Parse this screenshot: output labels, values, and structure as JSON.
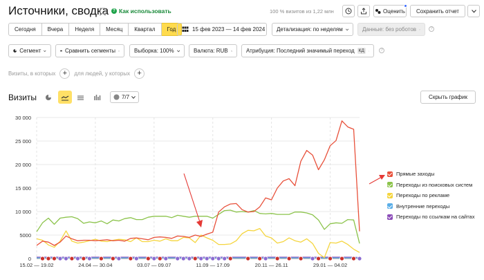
{
  "header": {
    "title": "Источники, сводка",
    "howto_label": "Как использовать",
    "visits_info": "100 % визитов из 1,22 млн",
    "rate_label": "Оценить",
    "save_label": "Сохранить отчет"
  },
  "periods": [
    {
      "label": "Сегодня"
    },
    {
      "label": "Вчера"
    },
    {
      "label": "Неделя"
    },
    {
      "label": "Месяц"
    },
    {
      "label": "Квартал"
    },
    {
      "label": "Год"
    }
  ],
  "active_period": "Год",
  "date_range": "15 фев 2023 — 14 фев 2024",
  "detail_dropdown": "Детализация: по неделям",
  "robots_dropdown": "Данные: без роботов",
  "segment_dropdown": "Сегмент",
  "compare_dropdown": "Сравнить сегменты",
  "sample_dropdown": "Выборка: 100%",
  "currency_dropdown": "Валюта: RUB",
  "attribution_dropdown": "Атрибуция: Последний значимый переход",
  "attribution_badge": "КД",
  "filters": {
    "visits_label": "Визиты, в которых",
    "people_label": "для людей, у которых"
  },
  "chart_section": {
    "title": "Визиты",
    "metrics_count": "7/7",
    "hide_label": "Скрыть график"
  },
  "colors": {
    "accent": "#ffdb4d",
    "direct": "#e8503a",
    "search": "#8bc34a",
    "ads": "#f5d53d",
    "internal": "#5aaee8",
    "links": "#8b4bb8"
  },
  "chart_data": {
    "type": "line",
    "ylim": [
      0,
      30000
    ],
    "yticks": [
      "0",
      "5000",
      "10 000",
      "15 000",
      "20 000",
      "25 000",
      "30 000"
    ],
    "ytick_values": [
      0,
      5000,
      10000,
      15000,
      20000,
      25000,
      30000
    ],
    "xtick_labels": [
      "15.02 — 19.02",
      "24.04 — 30.04",
      "03.07 — 09.07",
      "11.09 — 17.09",
      "20.11 — 26.11",
      "29.01 — 04.02"
    ],
    "xtick_index": [
      0,
      10,
      20,
      30,
      40,
      50
    ],
    "series": [
      {
        "name": "Прямые заходы",
        "color": "#e8503a",
        "values": [
          2800,
          3700,
          3500,
          2800,
          3500,
          4800,
          4200,
          3800,
          3900,
          3900,
          3800,
          3900,
          4000,
          3800,
          3900,
          3700,
          4300,
          4400,
          4200,
          4000,
          4500,
          4600,
          4500,
          4300,
          4800,
          4700,
          4500,
          5000,
          4700,
          5200,
          5600,
          9900,
          11000,
          11600,
          11700,
          10400,
          9900,
          10000,
          11000,
          12900,
          12500,
          15000,
          16500,
          17000,
          15500,
          20700,
          23000,
          22000,
          18900,
          21000,
          24000,
          25100,
          29300,
          28000,
          27500,
          5800
        ]
      },
      {
        "name": "Переходы из поисковых систем",
        "color": "#8bc34a",
        "values": [
          5700,
          7600,
          8600,
          7300,
          8600,
          8800,
          8900,
          8500,
          7500,
          7800,
          7600,
          8000,
          7400,
          8200,
          8000,
          8500,
          8700,
          8300,
          8300,
          8800,
          9000,
          9000,
          9000,
          8700,
          9200,
          9000,
          8800,
          9000,
          9000,
          9000,
          8600,
          9400,
          10200,
          10300,
          9900,
          10000,
          9900,
          10200,
          9600,
          9500,
          9600,
          9400,
          9400,
          9400,
          9900,
          9900,
          9700,
          9300,
          8200,
          6200,
          7400,
          7600,
          7500,
          8300,
          8200,
          3200
        ]
      },
      {
        "name": "Переходы по рекламе",
        "color": "#f5d53d",
        "values": [
          4200,
          3900,
          2900,
          2400,
          3700,
          5900,
          3700,
          3300,
          3500,
          3800,
          4100,
          3700,
          3600,
          3900,
          4100,
          4000,
          3600,
          4400,
          3600,
          3600,
          3900,
          3700,
          4200,
          3800,
          3800,
          4500,
          4400,
          3400,
          5000,
          4400,
          3900,
          3000,
          3000,
          3100,
          3800,
          5300,
          6000,
          5900,
          6400,
          4800,
          4400,
          3300,
          3600,
          4400,
          3800,
          3500,
          4200,
          3200,
          1100,
          200,
          3400,
          3300,
          3700,
          3000,
          2000,
          1300
        ]
      },
      {
        "name": "Внутренние переходы",
        "color": "#5aaee8",
        "values": [
          150,
          150,
          150,
          150,
          150,
          150,
          150,
          150,
          150,
          150,
          150,
          150,
          150,
          150,
          150,
          150,
          150,
          150,
          150,
          150,
          150,
          150,
          150,
          150,
          150,
          150,
          150,
          150,
          150,
          150,
          150,
          150,
          150,
          150,
          150,
          150,
          150,
          150,
          150,
          150,
          150,
          150,
          150,
          150,
          150,
          150,
          150,
          150,
          150,
          150,
          150,
          150,
          150,
          150,
          150,
          100
        ]
      },
      {
        "name": "Переходы по ссылкам на сайтах",
        "color": "#8b4bb8",
        "values": [
          300,
          300,
          300,
          300,
          300,
          300,
          300,
          300,
          300,
          300,
          300,
          300,
          300,
          300,
          300,
          300,
          300,
          300,
          300,
          300,
          300,
          300,
          300,
          300,
          300,
          300,
          300,
          300,
          300,
          300,
          300,
          300,
          300,
          300,
          300,
          300,
          300,
          300,
          300,
          300,
          300,
          300,
          300,
          300,
          300,
          300,
          300,
          300,
          300,
          300,
          300,
          300,
          300,
          300,
          300,
          200
        ]
      }
    ],
    "legend_position": "right",
    "grid": true
  }
}
